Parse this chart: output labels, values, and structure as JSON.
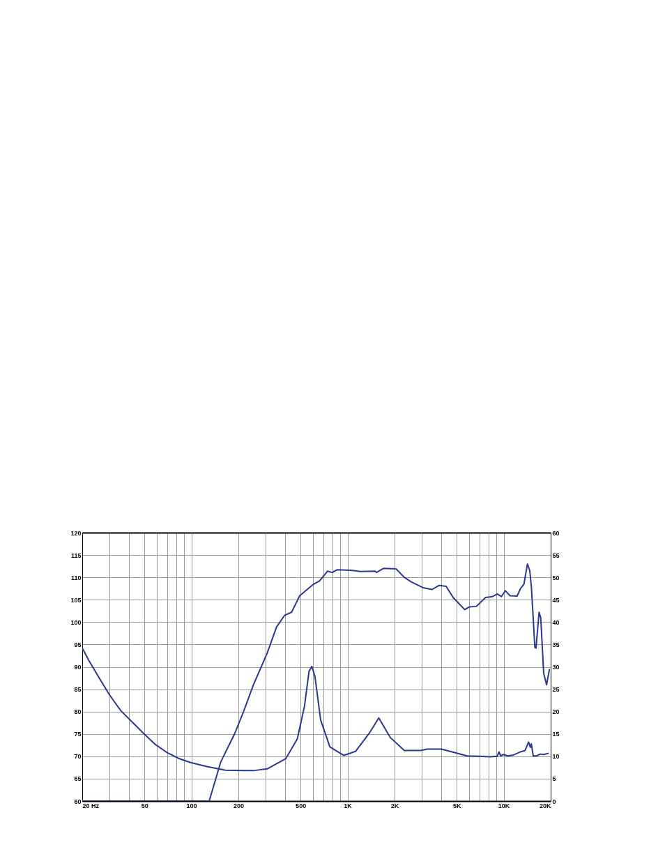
{
  "chart_data": {
    "type": "line",
    "log": "x",
    "grid": true,
    "line_style": "solid",
    "marker": "none",
    "xlim": [
      20,
      20000
    ],
    "xticks": [
      {
        "value": 20,
        "label": "20  Hz"
      },
      {
        "value": 30,
        "label": null
      },
      {
        "value": 40,
        "label": null
      },
      50,
      {
        "value": 60,
        "label": null
      },
      {
        "value": 70,
        "label": null
      },
      {
        "value": 80,
        "label": null
      },
      {
        "value": 90,
        "label": null
      },
      100,
      200,
      {
        "value": 300,
        "label": null
      },
      {
        "value": 400,
        "label": null
      },
      500,
      {
        "value": 600,
        "label": null
      },
      {
        "value": 700,
        "label": null
      },
      {
        "value": 800,
        "label": null
      },
      {
        "value": 900,
        "label": null
      },
      {
        "value": 1000,
        "label": "1K"
      },
      {
        "value": 2000,
        "label": "2K"
      },
      {
        "value": 3000,
        "label": null
      },
      {
        "value": 4000,
        "label": null
      },
      {
        "value": 5000,
        "label": "5K"
      },
      {
        "value": 6000,
        "label": null
      },
      {
        "value": 7000,
        "label": null
      },
      {
        "value": 8000,
        "label": null
      },
      {
        "value": 9000,
        "label": null
      },
      {
        "value": 10000,
        "label": "10K"
      },
      {
        "value": 20000,
        "label": "20K"
      }
    ],
    "ylim": [
      60,
      120
    ],
    "yticks": [
      60,
      65,
      70,
      75,
      80,
      85,
      90,
      95,
      100,
      105,
      110,
      115,
      120
    ],
    "y2lim": [
      0,
      60
    ],
    "y2ticks": [
      0,
      5,
      10,
      15,
      20,
      25,
      30,
      35,
      40,
      45,
      50,
      55,
      60
    ],
    "series": [
      {
        "color": "#2b3592",
        "x": [
          20,
          130,
          154,
          189,
          217,
          249,
          306,
          351,
          395,
          438,
          494,
          607,
          661,
          745,
          798,
          855,
          1050,
          1205,
          1504,
          1531,
          1697,
          2047,
          2310,
          2558,
          3040,
          3484,
          3862,
          4280,
          4745,
          5625,
          6025,
          6680,
          7660,
          8490,
          9090,
          9670,
          10250,
          10990,
          12170,
          12820,
          13490,
          14190,
          14690,
          15040,
          15850,
          16110,
          16860,
          17270,
          18050,
          18820,
          19650
        ],
        "values": [
          60,
          60,
          68.7,
          75,
          80.2,
          85.9,
          93.1,
          98.9,
          101.5,
          102.2,
          105.9,
          108.5,
          109.2,
          111.4,
          111.1,
          111.7,
          111.6,
          111.3,
          111.4,
          111.1,
          112,
          111.9,
          110,
          109,
          107.7,
          107.3,
          108.2,
          108,
          105.5,
          102.8,
          103.4,
          103.5,
          105.5,
          105.7,
          106.3,
          105.7,
          107,
          105.9,
          105.8,
          107.5,
          108.5,
          113,
          111.5,
          108,
          94.3,
          94.2,
          102.2,
          101,
          88.5,
          86,
          89.5
        ]
      },
      {
        "color": "#2b3592",
        "axis": "y2",
        "x": [
          20,
          21.9,
          25.3,
          29.8,
          35.3,
          41.9,
          49.8,
          59,
          70.1,
          83.2,
          98.7,
          125.5,
          165,
          217,
          249,
          306,
          403,
          477,
          530,
          567,
          591,
          618,
          673,
          771,
          948,
          1125,
          1381,
          1585,
          1880,
          2310,
          2930,
          3250,
          3990,
          4910,
          5820,
          6920,
          8200,
          9090,
          9330,
          9560,
          9990,
          10610,
          11560,
          12820,
          13710,
          14440,
          14800,
          15040,
          15460,
          16290,
          17140,
          18050,
          19450
        ],
        "values": [
          34.2,
          31.6,
          27.9,
          23.8,
          20.2,
          17.6,
          15,
          12.6,
          10.8,
          9.5,
          8.6,
          7.7,
          6.9,
          6.8,
          6.8,
          7.2,
          9.5,
          13.9,
          21.2,
          29,
          30.1,
          27.9,
          18.1,
          12.1,
          10.2,
          11.1,
          15.2,
          18.6,
          14.2,
          11.3,
          11.3,
          11.6,
          11.6,
          10.8,
          10.1,
          10,
          9.9,
          10,
          11,
          10.1,
          10.4,
          10.1,
          10.3,
          11,
          11.3,
          13.2,
          12,
          12.8,
          10.1,
          10.1,
          10.5,
          10.4,
          10.7
        ]
      }
    ]
  }
}
